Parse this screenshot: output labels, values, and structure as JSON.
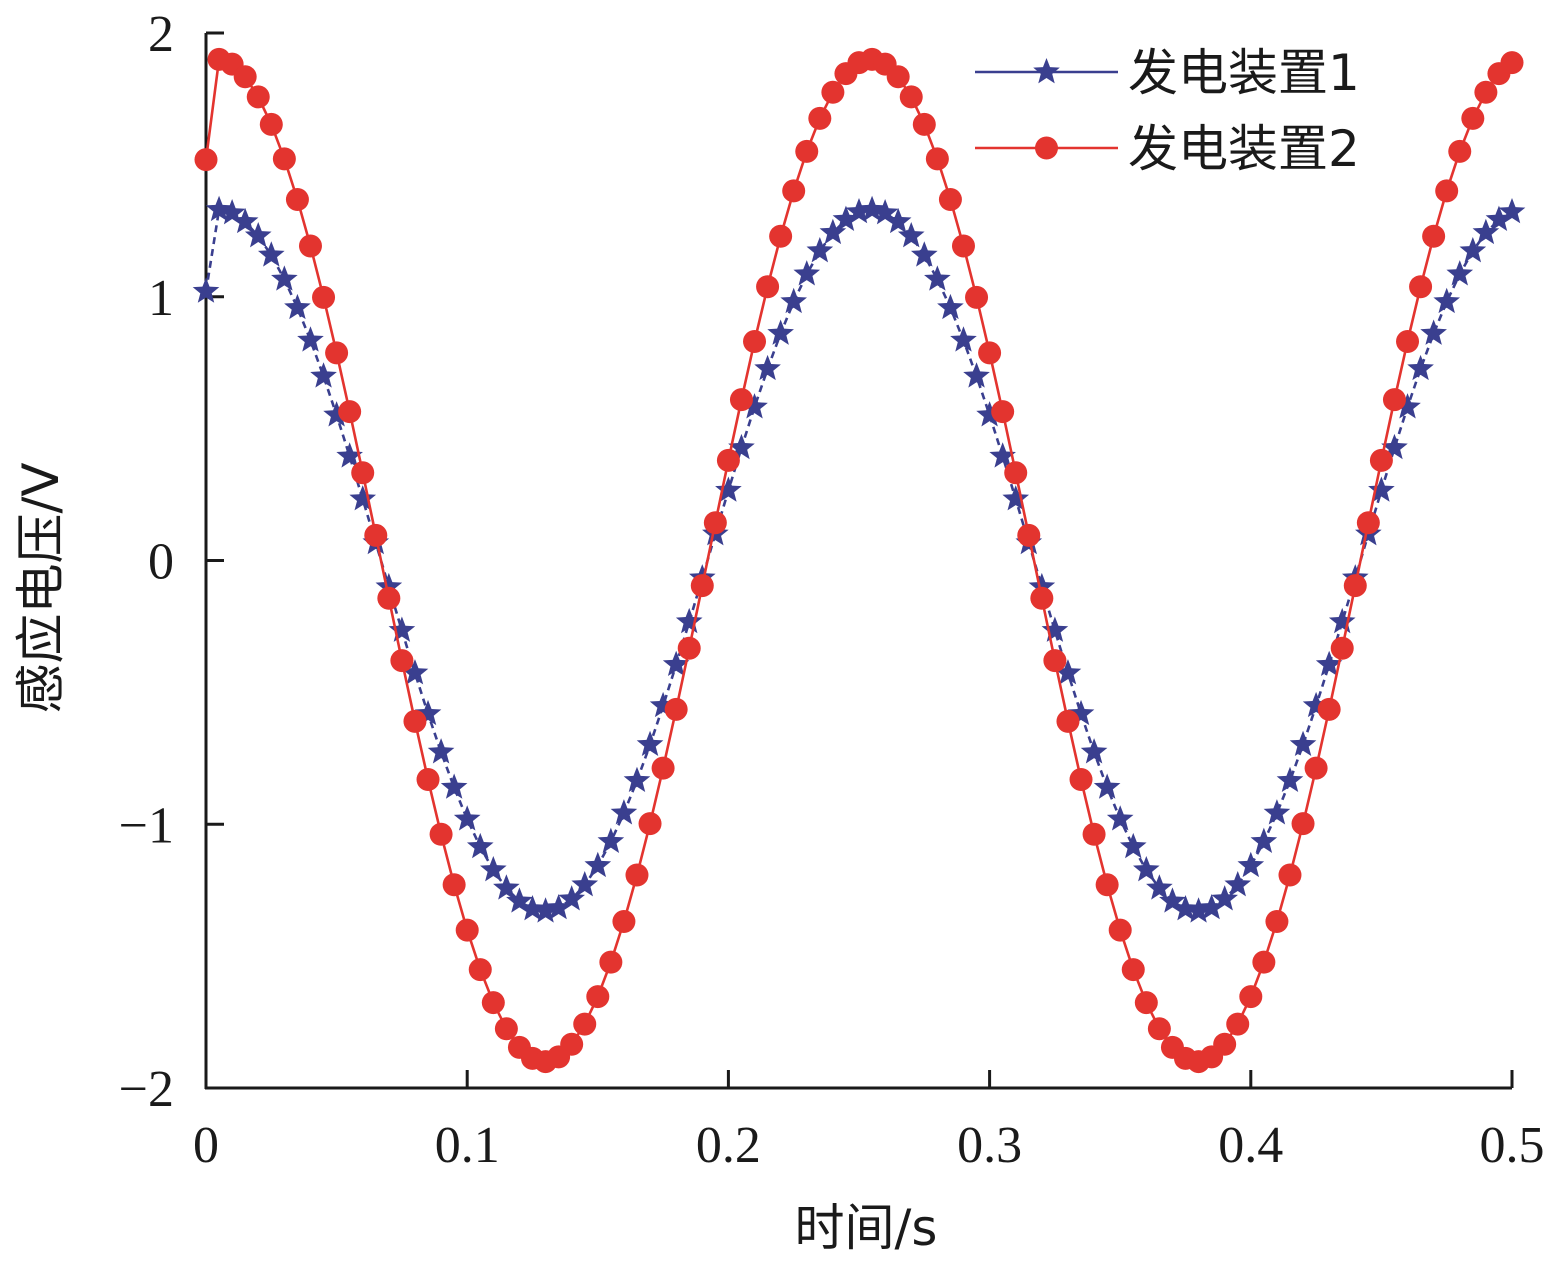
{
  "chart_data": {
    "type": "line",
    "title": "",
    "xlabel": "时间/s",
    "ylabel": "感应电压/V",
    "xlim": [
      0,
      0.5
    ],
    "ylim": [
      -2,
      2
    ],
    "xticks": [
      0,
      0.1,
      0.2,
      0.3,
      0.4,
      0.5
    ],
    "xtick_labels": [
      "0",
      "0.1",
      "0.2",
      "0.3",
      "0.4",
      "0.5"
    ],
    "yticks": [
      -2,
      -1,
      0,
      1,
      2
    ],
    "ytick_labels": [
      "−2",
      "−1",
      "0",
      "1",
      "2"
    ],
    "grid": false,
    "legend_position": "top-right",
    "series": [
      {
        "name": "发电装置1",
        "color": "#3a3f8f",
        "marker": "star",
        "line_style": "dashed",
        "start": [
          0.0,
          1.02
        ],
        "amplitude": 1.33,
        "period": 0.25,
        "phase_offset": 0.0045,
        "t_start": 0.005,
        "t_end": 0.5,
        "marker_step": 0.005
      },
      {
        "name": "发电装置2",
        "color": "#e3342f",
        "marker": "circle",
        "line_style": "solid",
        "start": [
          0.0,
          1.52
        ],
        "amplitude": 1.9,
        "period": 0.25,
        "phase_offset": 0.0045,
        "t_start": 0.005,
        "t_end": 0.5,
        "marker_step": 0.005
      }
    ]
  }
}
